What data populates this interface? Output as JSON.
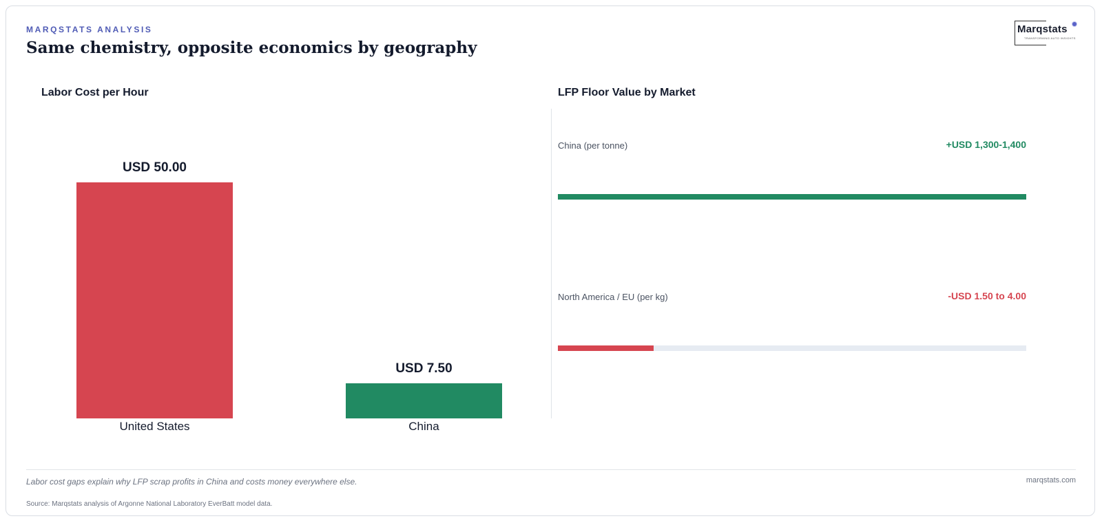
{
  "header": {
    "kicker": "MARQSTATS ANALYSIS",
    "title": "Same chemistry, opposite economics by geography"
  },
  "logo": {
    "word": "Marqstats",
    "tagline": "TRANSFORMING AUTO INSIGHTS"
  },
  "colors": {
    "red": "#d64550",
    "green": "#218a62",
    "track": "#e6ebf2",
    "accent": "#4f5bb5"
  },
  "chart_data": [
    {
      "type": "bar",
      "title": "Labor Cost per Hour",
      "categories": [
        "United States",
        "China"
      ],
      "values": [
        50.0,
        7.5
      ],
      "value_labels": [
        "USD 50.00",
        "USD 7.50"
      ],
      "ylim": [
        0,
        50
      ],
      "grid": false
    },
    {
      "type": "bar",
      "orientation": "horizontal",
      "title": "LFP Floor Value by Market",
      "categories": [
        "China (per tonne)",
        "North America / EU (per kg)"
      ],
      "value_labels": [
        "+USD 1,300-1,400",
        "-USD 1.50 to 4.00"
      ],
      "fill_fractions": [
        1.0,
        0.205
      ],
      "grid": false
    }
  ],
  "footer": {
    "caption": "Labor cost gaps explain why LFP scrap profits in China and costs money everywhere else.",
    "site": "marqstats.com",
    "source": "Source: Marqstats analysis of Argonne National Laboratory EverBatt model data."
  }
}
